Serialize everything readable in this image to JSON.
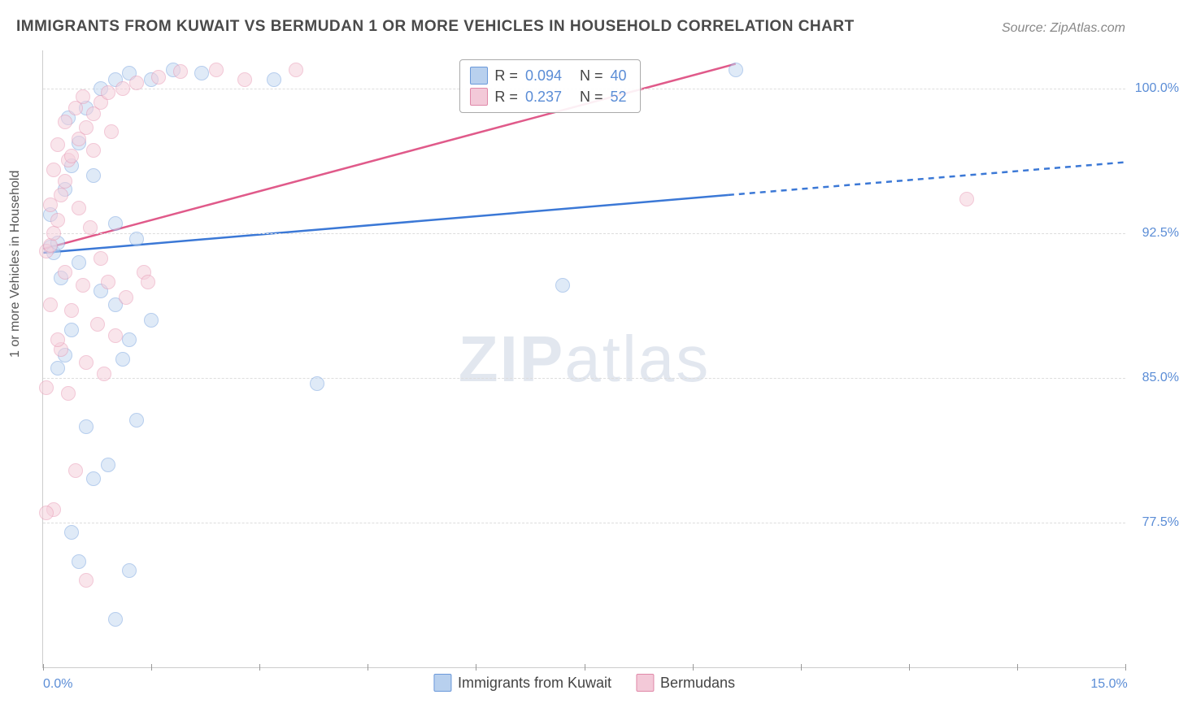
{
  "title": "IMMIGRANTS FROM KUWAIT VS BERMUDAN 1 OR MORE VEHICLES IN HOUSEHOLD CORRELATION CHART",
  "source": "Source: ZipAtlas.com",
  "ylabel": "1 or more Vehicles in Household",
  "watermark_zip": "ZIP",
  "watermark_atlas": "atlas",
  "chart": {
    "type": "scatter",
    "xlim": [
      0,
      15
    ],
    "ylim": [
      70,
      102
    ],
    "x_axis_labels": [
      {
        "x": 0,
        "text": "0.0%"
      },
      {
        "x": 15,
        "text": "15.0%"
      }
    ],
    "x_ticks": [
      0,
      1.5,
      3,
      4.5,
      6,
      7.5,
      9,
      10.5,
      12,
      13.5,
      15
    ],
    "y_gridlines": [
      77.5,
      85.0,
      92.5,
      100.0
    ],
    "y_tick_labels": [
      "77.5%",
      "85.0%",
      "92.5%",
      "100.0%"
    ],
    "background_color": "#ffffff",
    "grid_color": "#dddddd",
    "axis_label_color": "#5b8dd6",
    "point_radius": 9,
    "point_opacity": 0.55,
    "series": [
      {
        "name": "Immigrants from Kuwait",
        "color_fill": "#c5d9f1",
        "color_stroke": "#7ba6e0",
        "swatch_fill": "#b8d0ee",
        "swatch_stroke": "#6b99da",
        "R": "0.094",
        "N": "40",
        "trend": {
          "x1": 0,
          "y1": 91.5,
          "x2": 9.5,
          "y2": 94.5,
          "ext_x2": 15,
          "ext_y2": 96.2,
          "width": 2.5,
          "color": "#3b78d6"
        },
        "points": [
          [
            0.1,
            91.8
          ],
          [
            0.15,
            91.5
          ],
          [
            0.2,
            92.0
          ],
          [
            0.1,
            93.5
          ],
          [
            0.3,
            94.8
          ],
          [
            0.4,
            96.0
          ],
          [
            0.5,
            97.2
          ],
          [
            0.35,
            98.5
          ],
          [
            0.6,
            99.0
          ],
          [
            0.8,
            100.0
          ],
          [
            1.0,
            100.5
          ],
          [
            1.2,
            100.8
          ],
          [
            1.5,
            100.5
          ],
          [
            1.8,
            101.0
          ],
          [
            2.2,
            100.8
          ],
          [
            3.2,
            100.5
          ],
          [
            0.7,
            95.5
          ],
          [
            1.0,
            93.0
          ],
          [
            1.3,
            92.2
          ],
          [
            0.5,
            91.0
          ],
          [
            0.8,
            89.5
          ],
          [
            1.0,
            88.8
          ],
          [
            0.4,
            87.5
          ],
          [
            1.2,
            87.0
          ],
          [
            0.3,
            86.2
          ],
          [
            1.1,
            86.0
          ],
          [
            0.2,
            85.5
          ],
          [
            0.6,
            82.5
          ],
          [
            1.3,
            82.8
          ],
          [
            0.9,
            80.5
          ],
          [
            0.7,
            79.8
          ],
          [
            0.5,
            75.5
          ],
          [
            1.2,
            75.0
          ],
          [
            0.4,
            77.0
          ],
          [
            1.0,
            72.5
          ],
          [
            3.8,
            84.7
          ],
          [
            7.2,
            89.8
          ],
          [
            9.6,
            101.0
          ],
          [
            1.5,
            88.0
          ],
          [
            0.25,
            90.2
          ]
        ]
      },
      {
        "name": "Bermudans",
        "color_fill": "#f5d0dc",
        "color_stroke": "#e89bb5",
        "swatch_fill": "#f3c9d8",
        "swatch_stroke": "#e088a8",
        "R": "0.237",
        "N": "52",
        "trend": {
          "x1": 0,
          "y1": 91.7,
          "x2": 9.6,
          "y2": 101.3,
          "width": 2.5,
          "color": "#e05a8a"
        },
        "points": [
          [
            0.05,
            91.6
          ],
          [
            0.1,
            91.9
          ],
          [
            0.15,
            92.5
          ],
          [
            0.2,
            93.2
          ],
          [
            0.1,
            94.0
          ],
          [
            0.25,
            94.5
          ],
          [
            0.3,
            95.2
          ],
          [
            0.15,
            95.8
          ],
          [
            0.35,
            96.3
          ],
          [
            0.4,
            96.5
          ],
          [
            0.2,
            97.1
          ],
          [
            0.5,
            97.4
          ],
          [
            0.6,
            98.0
          ],
          [
            0.3,
            98.3
          ],
          [
            0.7,
            98.7
          ],
          [
            0.45,
            99.0
          ],
          [
            0.8,
            99.3
          ],
          [
            0.55,
            99.6
          ],
          [
            0.9,
            99.8
          ],
          [
            1.1,
            100.0
          ],
          [
            1.3,
            100.3
          ],
          [
            1.6,
            100.6
          ],
          [
            1.9,
            100.9
          ],
          [
            2.4,
            101.0
          ],
          [
            2.8,
            100.5
          ],
          [
            3.5,
            101.0
          ],
          [
            0.7,
            96.8
          ],
          [
            0.95,
            97.8
          ],
          [
            0.5,
            93.8
          ],
          [
            0.65,
            92.8
          ],
          [
            0.8,
            91.2
          ],
          [
            0.3,
            90.5
          ],
          [
            0.55,
            89.8
          ],
          [
            0.9,
            90.0
          ],
          [
            1.15,
            89.2
          ],
          [
            0.4,
            88.5
          ],
          [
            0.75,
            87.8
          ],
          [
            1.0,
            87.2
          ],
          [
            0.25,
            86.5
          ],
          [
            0.6,
            85.8
          ],
          [
            0.85,
            85.2
          ],
          [
            0.35,
            84.2
          ],
          [
            1.4,
            90.5
          ],
          [
            1.45,
            90.0
          ],
          [
            0.05,
            84.5
          ],
          [
            0.45,
            80.2
          ],
          [
            0.15,
            78.2
          ],
          [
            0.6,
            74.5
          ],
          [
            12.8,
            94.3
          ],
          [
            0.1,
            88.8
          ],
          [
            0.2,
            87.0
          ],
          [
            0.05,
            78.0
          ]
        ]
      }
    ],
    "legend_box": {
      "top_pct": 1.5,
      "left_pct": 38.5
    },
    "bottom_legend": [
      "Immigrants from Kuwait",
      "Bermudans"
    ]
  }
}
